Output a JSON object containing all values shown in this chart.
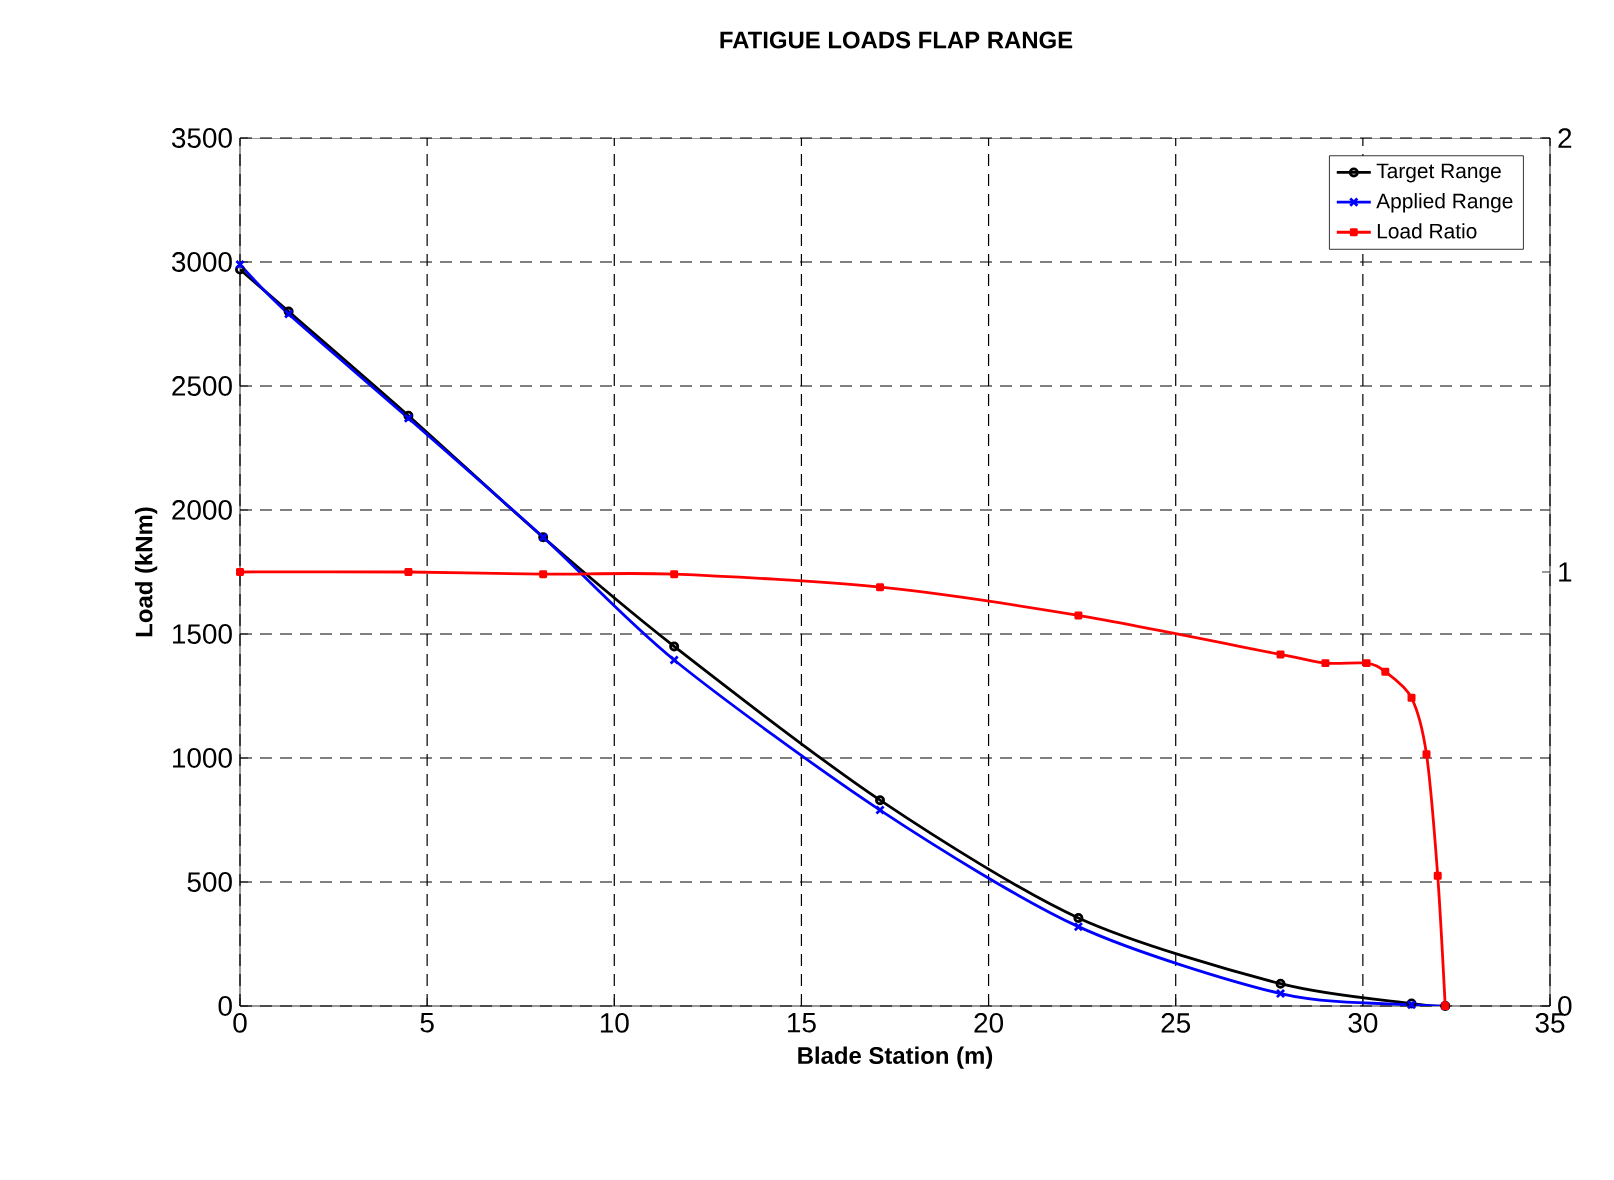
{
  "chart_data": {
    "type": "line",
    "title": "FATIGUE LOADS FLAP RANGE",
    "xlabel": "Blade Station (m)",
    "ylabel": "Load (kNm)",
    "xlim": [
      0,
      35
    ],
    "xticks": [
      0,
      5,
      10,
      15,
      20,
      25,
      30,
      35
    ],
    "ylim": [
      0,
      3500
    ],
    "yticks": [
      0,
      500,
      1000,
      1500,
      2000,
      2500,
      3000,
      3500
    ],
    "y2lim": [
      0,
      2
    ],
    "y2ticks": [
      0,
      1,
      2
    ],
    "grid": true,
    "legend": "top right",
    "series": [
      {
        "name": "Target Range",
        "color": "#000000",
        "marker": "circle",
        "x": [
          0,
          1.3,
          4.5,
          8.1,
          11.6,
          17.1,
          22.4,
          27.8,
          31.3,
          32.2
        ],
        "values": [
          2970,
          2800,
          2380,
          1890,
          1450,
          830,
          355,
          90,
          10,
          0
        ]
      },
      {
        "name": "Applied Range",
        "color": "#0000ff",
        "marker": "cross",
        "x": [
          0,
          1.3,
          4.5,
          8.1,
          11.6,
          17.1,
          22.4,
          27.8,
          31.3,
          32.2
        ],
        "values": [
          2990,
          2790,
          2370,
          1890,
          1395,
          790,
          320,
          50,
          5,
          0
        ]
      },
      {
        "name": "Load Ratio",
        "color": "#ff0000",
        "marker": "square",
        "axis": "y2",
        "x": [
          0,
          4.5,
          8.1,
          11.6,
          17.1,
          22.4,
          27.8,
          29,
          30.1,
          30.6,
          31.3,
          31.7,
          32.0,
          32.2
        ],
        "values": [
          1.0,
          1.0,
          0.995,
          0.995,
          0.965,
          0.9,
          0.81,
          0.79,
          0.79,
          0.77,
          0.71,
          0.58,
          0.3,
          0
        ]
      }
    ]
  }
}
